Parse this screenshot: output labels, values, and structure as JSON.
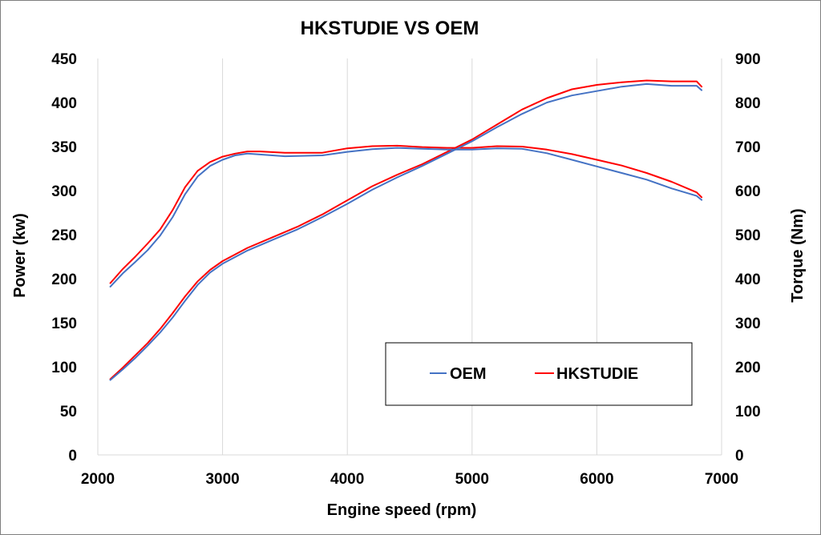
{
  "chart_data": {
    "type": "line",
    "title": "HKSTUDIE VS OEM",
    "xlabel": "Engine speed (rpm)",
    "ylabel": "Power (kw)",
    "y2label": "Torque (Nm)",
    "xlim": [
      2000,
      7000
    ],
    "ylim": [
      0,
      450
    ],
    "y2lim": [
      0,
      900
    ],
    "xticks": [
      2000,
      3000,
      4000,
      5000,
      6000,
      7000
    ],
    "yticks": [
      0,
      50,
      100,
      150,
      200,
      250,
      300,
      350,
      400,
      450
    ],
    "y2ticks": [
      0,
      100,
      200,
      300,
      400,
      500,
      600,
      700,
      800,
      900
    ],
    "grid": "vertical",
    "legend_position": "bottom-right",
    "colors": {
      "OEM": "#4472c4",
      "HKSTUDIE": "#ff0000"
    },
    "legend": [
      "OEM",
      "HKSTUDIE"
    ],
    "series": [
      {
        "name": "OEM",
        "quantity": "power",
        "axis": "left",
        "x": [
          2100,
          2200,
          2300,
          2400,
          2500,
          2600,
          2700,
          2800,
          2900,
          3000,
          3200,
          3400,
          3600,
          3800,
          4000,
          4200,
          4400,
          4600,
          4800,
          5000,
          5200,
          5400,
          5600,
          5800,
          6000,
          6200,
          6400,
          6600,
          6800,
          6840
        ],
        "y": [
          85,
          97,
          110,
          124,
          139,
          156,
          175,
          193,
          207,
          217,
          232,
          244,
          256,
          270,
          285,
          301,
          315,
          328,
          342,
          356,
          372,
          387,
          400,
          408,
          413,
          418,
          421,
          419,
          419,
          414
        ]
      },
      {
        "name": "HKSTUDIE",
        "quantity": "power",
        "axis": "left",
        "x": [
          2100,
          2200,
          2300,
          2400,
          2500,
          2600,
          2700,
          2800,
          2900,
          3000,
          3200,
          3400,
          3600,
          3800,
          4000,
          4200,
          4400,
          4600,
          4800,
          5000,
          5200,
          5400,
          5600,
          5800,
          6000,
          6200,
          6400,
          6600,
          6800,
          6840
        ],
        "y": [
          86,
          99,
          113,
          127,
          143,
          161,
          180,
          197,
          210,
          220,
          235,
          247,
          259,
          273,
          289,
          305,
          318,
          330,
          344,
          358,
          375,
          392,
          405,
          415,
          420,
          423,
          425,
          424,
          424,
          418
        ]
      },
      {
        "name": "OEM",
        "quantity": "torque",
        "axis": "right",
        "x": [
          2100,
          2200,
          2300,
          2400,
          2500,
          2600,
          2700,
          2800,
          2900,
          3000,
          3100,
          3200,
          3300,
          3500,
          3800,
          4000,
          4200,
          4400,
          4600,
          4800,
          5000,
          5200,
          5400,
          5600,
          5800,
          6000,
          6200,
          6400,
          6600,
          6800,
          6840
        ],
        "y": [
          382,
          412,
          438,
          465,
          498,
          540,
          592,
          632,
          656,
          670,
          680,
          684,
          682,
          678,
          680,
          688,
          694,
          697,
          695,
          693,
          693,
          696,
          695,
          685,
          670,
          655,
          640,
          625,
          605,
          588,
          579
        ]
      },
      {
        "name": "HKSTUDIE",
        "quantity": "torque",
        "axis": "right",
        "x": [
          2100,
          2200,
          2300,
          2400,
          2500,
          2600,
          2700,
          2800,
          2900,
          3000,
          3100,
          3200,
          3300,
          3500,
          3800,
          4000,
          4200,
          4400,
          4600,
          4800,
          5000,
          5200,
          5400,
          5600,
          5800,
          6000,
          6200,
          6400,
          6600,
          6800,
          6840
        ],
        "y": [
          390,
          422,
          450,
          480,
          512,
          556,
          608,
          645,
          665,
          677,
          684,
          689,
          689,
          686,
          686,
          696,
          701,
          702,
          699,
          697,
          697,
          701,
          700,
          693,
          683,
          670,
          657,
          640,
          620,
          596,
          585
        ]
      }
    ]
  }
}
